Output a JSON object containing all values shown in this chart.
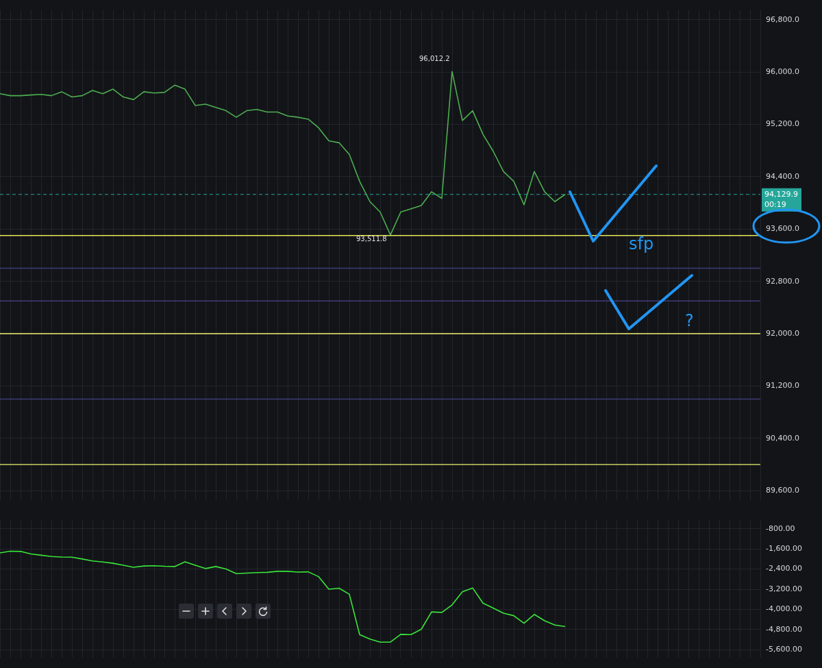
{
  "chart_data": [
    {
      "type": "line",
      "categories": [
        null,
        null,
        null,
        null,
        null,
        null,
        null,
        null,
        null,
        null,
        null,
        null,
        null,
        null,
        null,
        null,
        null,
        null,
        null,
        null,
        null,
        null,
        null,
        null,
        null,
        null,
        null,
        null,
        null,
        null,
        null,
        null,
        null,
        null,
        null,
        null,
        null,
        null,
        null,
        null,
        null,
        null,
        null,
        null,
        null,
        null,
        null,
        null,
        null,
        null,
        null,
        null,
        null,
        null,
        null,
        null,
        null,
        null,
        null,
        null,
        null,
        null,
        null,
        null,
        null,
        null,
        null,
        null,
        null,
        null,
        null,
        null,
        null,
        null,
        null
      ],
      "series": [
        {
          "color": "#4caf50",
          "values": [
            95670,
            95640,
            95640,
            95650,
            95660,
            95640,
            95700,
            95620,
            95640,
            95720,
            95670,
            95740,
            95620,
            95580,
            95700,
            95680,
            95690,
            95800,
            95740,
            95490,
            95510,
            95460,
            95410,
            95310,
            95410,
            95430,
            95390,
            95390,
            95330,
            95310,
            95280,
            95150,
            94950,
            94920,
            94740,
            94330,
            94020,
            93860,
            93510,
            93860,
            93910,
            93960,
            94170,
            94070,
            96010,
            95260,
            95410,
            95050,
            94790,
            94480,
            94330,
            93970,
            94480,
            94170,
            94020,
            94130,
            null,
            null,
            null,
            null,
            null,
            null,
            null,
            null,
            null,
            null,
            null,
            null,
            null,
            null,
            null,
            null,
            null,
            null,
            null
          ]
        }
      ],
      "ylim": [
        89450,
        96950
      ],
      "yticks": [
        {
          "value": 89600,
          "label": "89,600.0"
        },
        {
          "value": 90400,
          "label": "90,400.0"
        },
        {
          "value": 91200,
          "label": "91,200.0"
        },
        {
          "value": 92000,
          "label": "92,000.0"
        },
        {
          "value": 92800,
          "label": "92,800.0"
        },
        {
          "value": 93600,
          "label": "93,600.0"
        },
        {
          "value": 94400,
          "label": "94,400.0"
        },
        {
          "value": 95200,
          "label": "95,200.0"
        },
        {
          "value": 96000,
          "label": "96,000.0"
        },
        {
          "value": 96800,
          "label": "96,800.0"
        }
      ],
      "ref_lines": [
        {
          "axis": "y",
          "value": 94129.9,
          "label": "94,129.9",
          "color": "#26a69a",
          "line_style": "dashed"
        },
        {
          "axis": "y",
          "value": 93500,
          "color": "#e6e65a",
          "line_style": "solid"
        },
        {
          "axis": "y",
          "value": 93000,
          "color": "#3c3c7a",
          "line_style": "solid"
        },
        {
          "axis": "y",
          "value": 92500,
          "color": "#3c3c7a",
          "line_style": "solid"
        },
        {
          "axis": "y",
          "value": 92000,
          "color": "#f0f070",
          "line_style": "solid"
        },
        {
          "axis": "y",
          "value": 91000,
          "color": "#3c3c7a",
          "line_style": "solid"
        },
        {
          "axis": "y",
          "value": 90000,
          "color": "#c8d060",
          "line_style": "solid"
        }
      ],
      "annotations": [
        "00:19",
        "sfp",
        "?",
        "96,012.2",
        "93,511.8"
      ],
      "grid": true,
      "legend": false,
      "tick_labels": "y",
      "marker": "none",
      "line_style": "solid"
    },
    {
      "type": "line",
      "categories": [
        null,
        null,
        null,
        null,
        null,
        null,
        null,
        null,
        null,
        null,
        null,
        null,
        null,
        null,
        null,
        null,
        null,
        null,
        null,
        null,
        null,
        null,
        null,
        null,
        null,
        null,
        null,
        null,
        null,
        null,
        null,
        null,
        null,
        null,
        null,
        null,
        null,
        null,
        null,
        null,
        null,
        null,
        null,
        null,
        null,
        null,
        null,
        null,
        null,
        null,
        null,
        null,
        null,
        null,
        null,
        null,
        null,
        null,
        null,
        null,
        null,
        null,
        null,
        null,
        null,
        null,
        null,
        null,
        null,
        null,
        null,
        null,
        null,
        null,
        null
      ],
      "series": [
        {
          "color": "#39e639",
          "values": [
            -1760,
            -1690,
            -1700,
            -1800,
            -1850,
            -1900,
            -1920,
            -1930,
            -2000,
            -2080,
            -2120,
            -2170,
            -2250,
            -2330,
            -2280,
            -2270,
            -2290,
            -2300,
            -2110,
            -2250,
            -2380,
            -2300,
            -2400,
            -2580,
            -2560,
            -2540,
            -2530,
            -2490,
            -2490,
            -2520,
            -2510,
            -2700,
            -3200,
            -3160,
            -3400,
            -5000,
            -5180,
            -5300,
            -5300,
            -4990,
            -5000,
            -4790,
            -4100,
            -4120,
            -3820,
            -3300,
            -3150,
            -3750,
            -3950,
            -4150,
            -4250,
            -4550,
            -4200,
            -4450,
            -4620,
            -4680,
            null,
            null,
            null,
            null,
            null,
            null,
            null,
            null,
            null,
            null,
            null,
            null,
            null,
            null,
            null,
            null,
            null,
            null,
            null
          ]
        }
      ],
      "ylim": [
        -5930,
        -470
      ],
      "yticks": [
        {
          "value": -5600,
          "label": "-5,600.00"
        },
        {
          "value": -4800,
          "label": "-4,800.00"
        },
        {
          "value": -4000,
          "label": "-4,000.00"
        },
        {
          "value": -3200,
          "label": "-3,200.00"
        },
        {
          "value": -2400,
          "label": "-2,400.00"
        },
        {
          "value": -1600,
          "label": "-1,600.00"
        },
        {
          "value": -800,
          "label": "-800.00"
        }
      ],
      "grid": true,
      "legend": false,
      "tick_labels": "y",
      "marker": "none",
      "line_style": "solid"
    }
  ]
}
